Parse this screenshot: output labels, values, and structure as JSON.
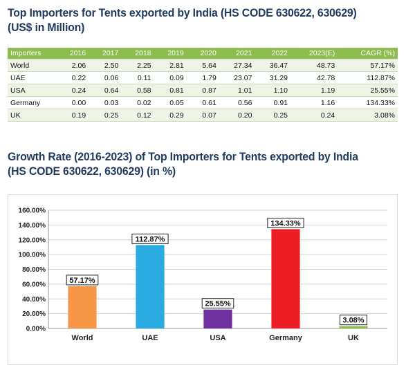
{
  "title1": {
    "line1": "Top Importers for Tents exported by India (HS CODE 630622, 630629)",
    "line2": "(US$ in Million)"
  },
  "title2": {
    "line1": "Growth Rate (2016-2023) of Top Importers for Tents exported by India",
    "line2": "(HS CODE 630622, 630629) (in %)"
  },
  "table": {
    "headers": [
      "Importers",
      "2016",
      "2017",
      "2018",
      "2019",
      "2020",
      "2021",
      "2022",
      "2023(E)",
      "CAGR (%)"
    ],
    "rows": [
      [
        "World",
        "2.06",
        "2.50",
        "2.25",
        "2.81",
        "5.64",
        "27.34",
        "36.47",
        "48.73",
        "57.17%"
      ],
      [
        "UAE",
        "0.22",
        "0.06",
        "0.11",
        "0.09",
        "1.79",
        "23.07",
        "31.29",
        "42.78",
        "112.87%"
      ],
      [
        "USA",
        "0.24",
        "0.64",
        "0.58",
        "0.81",
        "0.87",
        "1.01",
        "1.10",
        "1.19",
        "25.55%"
      ],
      [
        "Germany",
        "0.00",
        "0.03",
        "0.02",
        "0.05",
        "0.61",
        "0.56",
        "0.91",
        "1.16",
        "134.33%"
      ],
      [
        "UK",
        "0.19",
        "0.25",
        "0.12",
        "0.29",
        "0.07",
        "0.20",
        "0.25",
        "0.24",
        "3.08%"
      ]
    ]
  },
  "chart_data": {
    "type": "bar",
    "categories": [
      "World",
      "UAE",
      "USA",
      "Germany",
      "UK"
    ],
    "values": [
      57.17,
      112.87,
      25.55,
      134.33,
      3.08
    ],
    "data_labels": [
      "57.17%",
      "112.87%",
      "25.55%",
      "134.33%",
      "3.08%"
    ],
    "colors": [
      "#f79646",
      "#29abe2",
      "#7030a0",
      "#ee1c25",
      "#8dbc4f"
    ],
    "ylim": [
      0,
      160
    ],
    "yticks": [
      0,
      20,
      40,
      60,
      80,
      100,
      120,
      140,
      160
    ],
    "ytick_labels": [
      "0.00%",
      "20.00%",
      "40.00%",
      "60.00%",
      "80.00%",
      "100.00%",
      "120.00%",
      "140.00%",
      "160.00%"
    ],
    "grid": true,
    "legend": "none",
    "title": "",
    "xlabel": "",
    "ylabel": ""
  }
}
